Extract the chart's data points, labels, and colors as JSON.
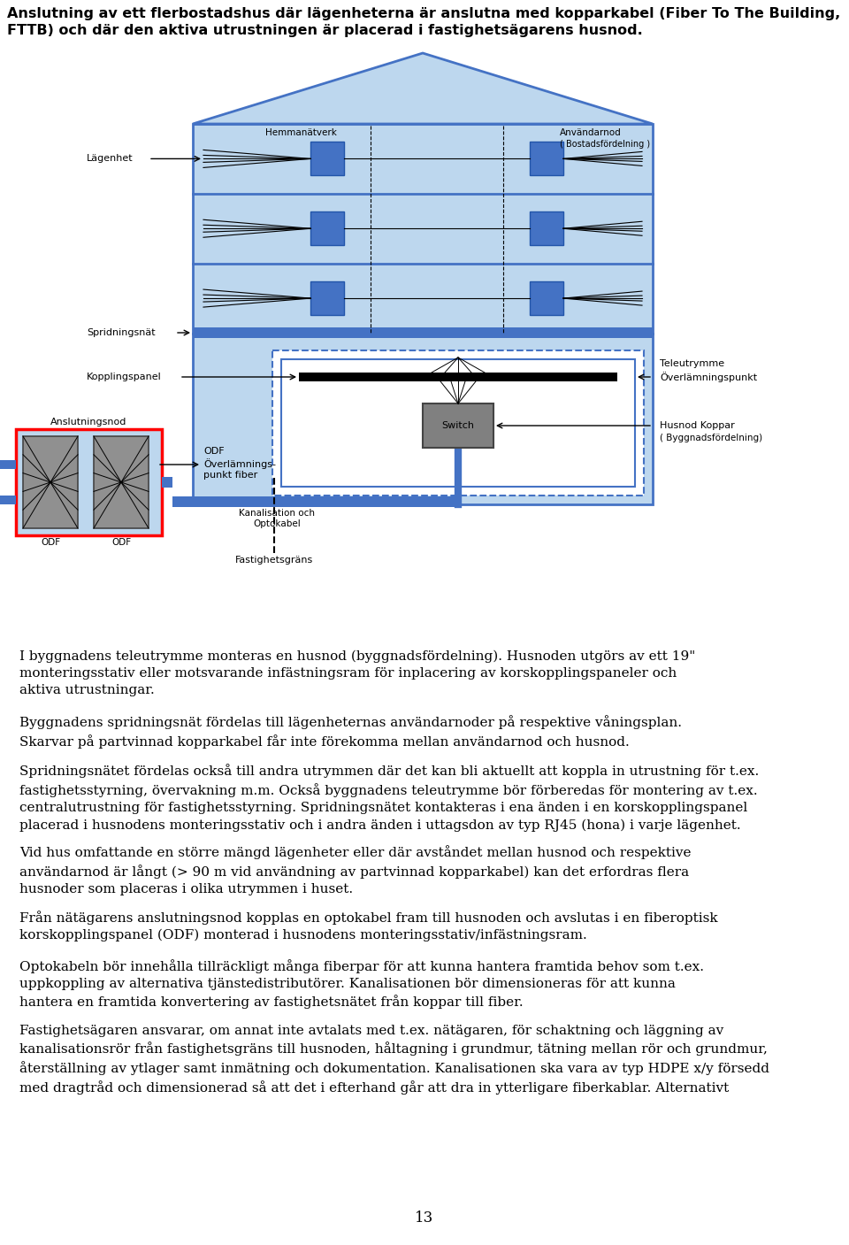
{
  "bg_color": "#ffffff",
  "text_color": "#000000",
  "blue_dark": "#4472C4",
  "blue_light": "#BDD7EE",
  "gray_dark": "#808080",
  "red_border": "#FF0000",
  "title": "Anslutning av ett flerbostadshus där lägenheterna är anslutna med kopparkabel (Fiber To The Building,\nFTTB) och där den aktiva utrustningen är placerad i fastighetsägarens husnod.",
  "page_number": "13",
  "paragraphs": [
    "I byggnadens teleutrymme monteras en husnod (byggnadsfördelning). Husnoden utgörs av ett 19\"\nmonteringsstativ eller motsvarande infästningsram för inplacering av korskopplingspaneler och\naktiva utrustningar.",
    "Byggnadens spridningsnät fördelas till lägenheternas användarnoder på respektive våningsplan.\nSkarvar på partvinnad kopparkabel får inte förekomma mellan användarnod och husnod.",
    "Spridningsnätet fördelas också till andra utrymmen där det kan bli aktuellt att koppla in utrustning för t.ex.\nfastighetsstyrning, övervakning m.m. Också byggnadens teleutrymme bör förberedas för montering av t.ex.\ncentralutrustning för fastighetsstyrning. Spridningsnätet kontakteras i ena änden i en korskopplingspanel\nplacerad i husnodens monteringsstativ och i andra änden i uttagsdon av typ RJ45 (hona) i varje lägenhet.",
    "Vid hus omfattande en större mängd lägenheter eller där avståndet mellan husnod och respektive\nanvändarnod är långt (> 90 m vid användning av partvinnad kopparkabel) kan det erfordras flera\nhusnoder som placeras i olika utrymmen i huset.",
    "Från nätägarens anslutningsnod kopplas en optokabel fram till husnoden och avslutas i en fiberoptisk\nkorskopplingspanel (ODF) monterad i husnodens monteringsstativ/infästningsram.",
    "Optokabeln bör innehålla tillräckligt många fiberpar för att kunna hantera framtida behov som t.ex.\nuppkoppling av alternativa tjänstedistributörer. Kanalisationen bör dimensioneras för att kunna\nhantera en framtida konvertering av fastighetsnätet från koppar till fiber.",
    "Fastighetsägaren ansvarar, om annat inte avtalats med t.ex. nätägaren, för schaktning och läggning av\nkanalisationsrör från fastighetsgräns till husnoden, håltagning i grundmur, tätning mellan rör och grundmur,\nåterställning av ytlager samt inmätning och dokumentation. Kanalisationen ska vara av typ HDPE x/y försedd\nmed dragtråd och dimensionerad så att det i efterhand går att dra in ytterligare fiberkablar. Alternativt"
  ]
}
